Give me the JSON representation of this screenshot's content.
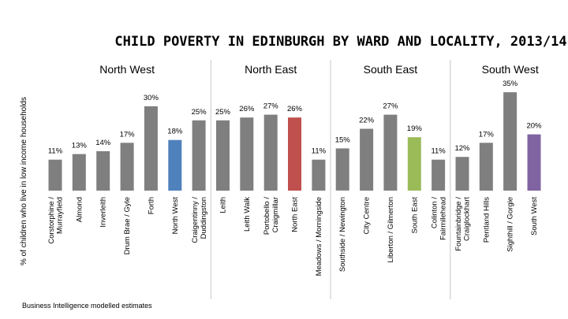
{
  "chart_data": {
    "type": "bar",
    "title": "CHILD POVERTY IN EDINBURGH BY WARD AND LOCALITY, 2013/14",
    "ylabel": "% of children who live in low income households",
    "ylim": [
      0,
      38
    ],
    "grid": false,
    "footnote": "Business Intelligence modelled estimates",
    "unit_suffix": "%",
    "bar_color_default": "#7f7f7f",
    "regions": [
      {
        "name": "North West",
        "start": 0,
        "end": 6
      },
      {
        "name": "North East",
        "start": 7,
        "end": 11
      },
      {
        "name": "South East",
        "start": 12,
        "end": 16
      },
      {
        "name": "South West",
        "start": 17,
        "end": 21
      }
    ],
    "categories": [
      "Corstorphine / Murrayfield",
      "Almond",
      "Inverleith",
      "Drum Brae / Gyle",
      "Forth",
      "North West",
      "Craigentinny / Duddingston",
      "Leith",
      "Leith Walk",
      "Portobello / Craigmillar",
      "North East",
      "Meadows / Morningside",
      "Southside / Newington",
      "City Centre",
      "Liberton / Gilmerton",
      "South East",
      "Colinton / Fairmilehead",
      "Fountainbridge / Craiglockhart",
      "Pentland Hills",
      "Sighthill / Gorgie",
      "South West"
    ],
    "values": [
      11,
      13,
      14,
      17,
      30,
      18,
      25,
      25,
      26,
      27,
      26,
      11,
      15,
      22,
      27,
      19,
      11,
      12,
      17,
      35,
      20
    ],
    "highlight_colors": {
      "5": "#4f81bd",
      "10": "#c0504d",
      "15": "#9bbb59",
      "20": "#8064a2"
    }
  }
}
